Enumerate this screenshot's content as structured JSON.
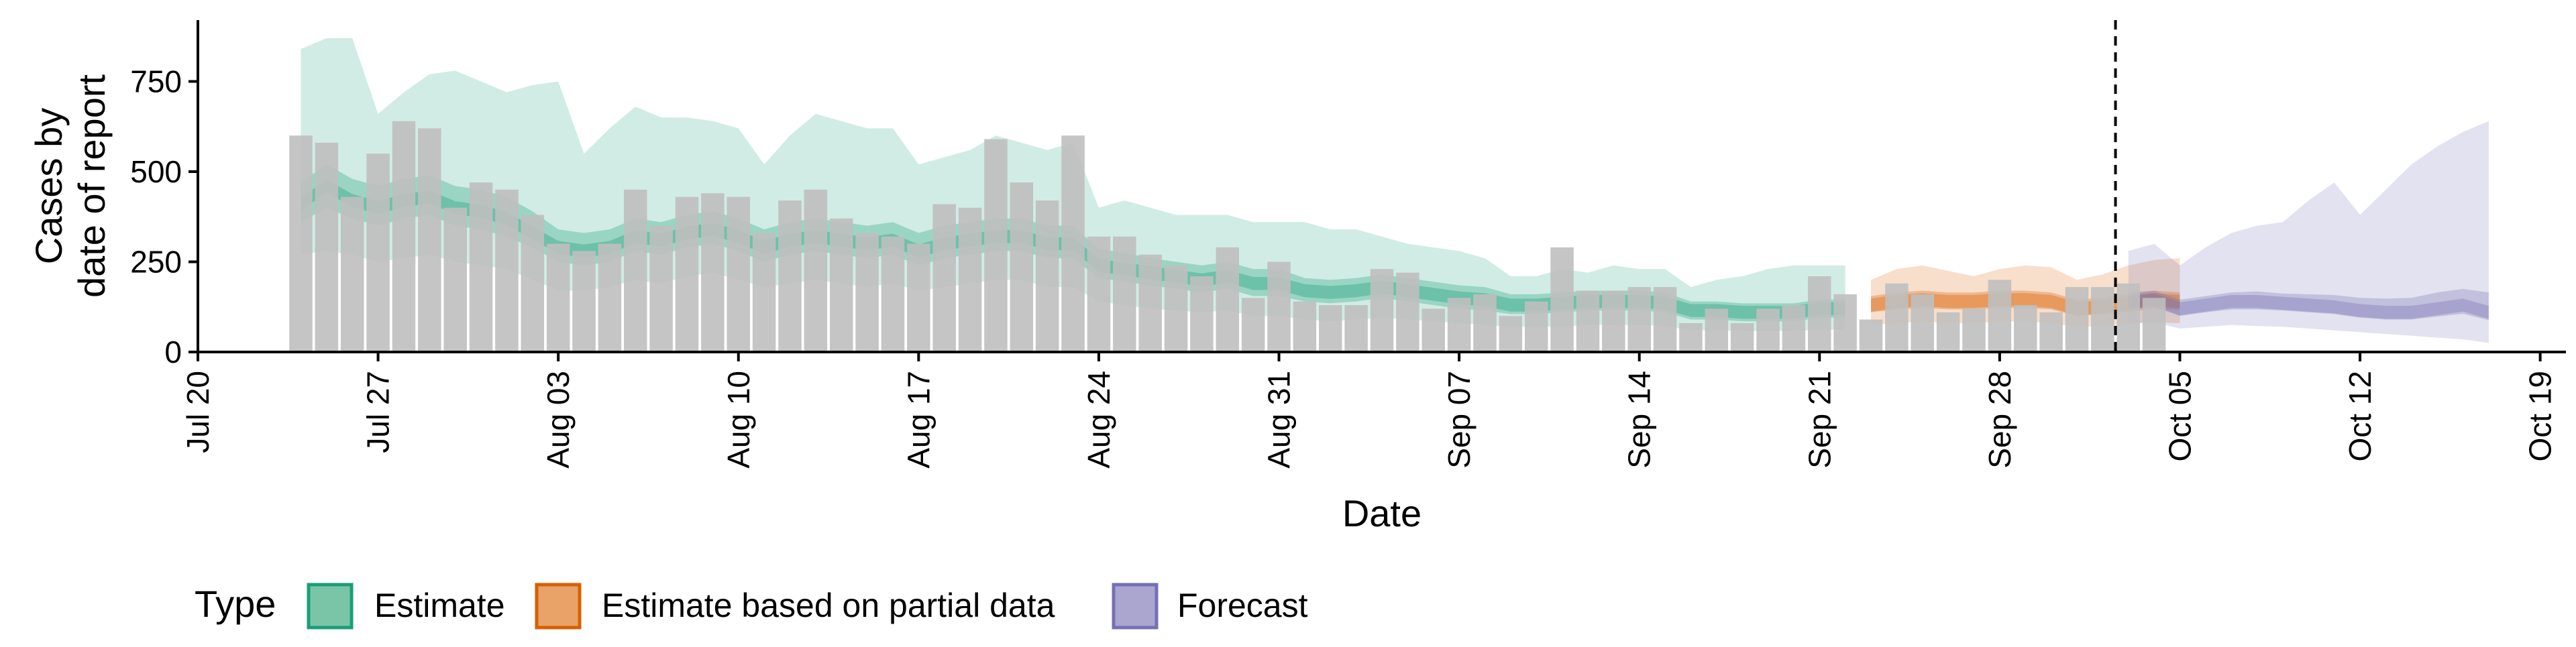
{
  "chart_data": {
    "type": "bar",
    "title": "",
    "xlabel": "Date",
    "ylabel": "Cases by\ndate of report",
    "ylim": [
      0,
      920
    ],
    "xlim": [
      "2020-07-20",
      "2020-10-20"
    ],
    "y_ticks": [
      0,
      250,
      500,
      750
    ],
    "x_ticks": [
      {
        "date": "2020-07-20",
        "label": "Jul 20"
      },
      {
        "date": "2020-07-27",
        "label": "Jul 27"
      },
      {
        "date": "2020-08-03",
        "label": "Aug 03"
      },
      {
        "date": "2020-08-10",
        "label": "Aug 10"
      },
      {
        "date": "2020-08-17",
        "label": "Aug 17"
      },
      {
        "date": "2020-08-24",
        "label": "Aug 24"
      },
      {
        "date": "2020-08-31",
        "label": "Aug 31"
      },
      {
        "date": "2020-09-07",
        "label": "Sep 07"
      },
      {
        "date": "2020-09-14",
        "label": "Sep 14"
      },
      {
        "date": "2020-09-21",
        "label": "Sep 21"
      },
      {
        "date": "2020-09-28",
        "label": "Sep 28"
      },
      {
        "date": "2020-10-05",
        "label": "Oct 05"
      },
      {
        "date": "2020-10-12",
        "label": "Oct 12"
      },
      {
        "date": "2020-10-19",
        "label": "Oct 19"
      }
    ],
    "grid": false,
    "legend": {
      "title": "Type",
      "position": "bottom",
      "entries": [
        {
          "label": "Estimate",
          "fill": "#7ac5a8",
          "stroke": "#1b9e77"
        },
        {
          "label": "Estimate based on partial data",
          "fill": "#e9a267",
          "stroke": "#d95f02"
        },
        {
          "label": "Forecast",
          "fill": "#aaa6d0",
          "stroke": "#7570b3"
        }
      ]
    },
    "forecast_date": "2020-10-02",
    "bar_color": "#bfbfbf",
    "bars": {
      "start_date": "2020-07-24",
      "values": [
        600,
        580,
        430,
        550,
        640,
        620,
        400,
        470,
        450,
        380,
        300,
        280,
        300,
        450,
        350,
        430,
        440,
        430,
        330,
        420,
        450,
        370,
        330,
        320,
        300,
        410,
        400,
        590,
        470,
        420,
        600,
        320,
        320,
        270,
        240,
        210,
        290,
        150,
        250,
        140,
        130,
        130,
        230,
        220,
        120,
        150,
        160,
        100,
        140,
        290,
        170,
        170,
        180,
        180,
        80,
        120,
        80,
        120,
        130,
        210,
        160,
        90,
        190,
        160,
        110,
        120,
        200,
        130,
        110,
        180,
        180,
        190,
        150
      ]
    },
    "series": [
      {
        "name": "Estimate",
        "start_date": "2020-07-24",
        "color": "#1b9e77",
        "median": [
          410,
          460,
          420,
          400,
          420,
          430,
          400,
          390,
          370,
          330,
          290,
          280,
          290,
          320,
          310,
          330,
          340,
          320,
          290,
          310,
          320,
          310,
          300,
          310,
          280,
          300,
          310,
          320,
          320,
          300,
          300,
          240,
          230,
          220,
          210,
          200,
          210,
          190,
          190,
          170,
          165,
          170,
          180,
          170,
          160,
          150,
          145,
          130,
          130,
          135,
          140,
          140,
          140,
          135,
          115,
          115,
          110,
          110,
          110,
          120,
          120
        ],
        "lower50": [
          360,
          400,
          370,
          350,
          370,
          380,
          350,
          340,
          320,
          290,
          250,
          240,
          250,
          280,
          270,
          290,
          300,
          280,
          250,
          270,
          280,
          270,
          260,
          270,
          240,
          260,
          270,
          280,
          280,
          260,
          260,
          205,
          195,
          185,
          175,
          165,
          175,
          155,
          155,
          140,
          135,
          140,
          150,
          140,
          130,
          120,
          115,
          105,
          105,
          110,
          115,
          115,
          115,
          110,
          90,
          90,
          85,
          85,
          85,
          95,
          95
        ],
        "upper50": [
          470,
          520,
          480,
          460,
          480,
          490,
          460,
          450,
          430,
          390,
          340,
          330,
          340,
          370,
          360,
          380,
          390,
          370,
          340,
          360,
          370,
          360,
          350,
          360,
          330,
          350,
          360,
          370,
          370,
          350,
          350,
          285,
          275,
          260,
          250,
          240,
          250,
          230,
          230,
          205,
          200,
          205,
          215,
          205,
          195,
          185,
          180,
          160,
          160,
          165,
          170,
          170,
          170,
          165,
          140,
          140,
          135,
          135,
          135,
          145,
          145
        ],
        "lower90": [
          270,
          280,
          270,
          250,
          260,
          270,
          250,
          240,
          230,
          200,
          170,
          170,
          180,
          200,
          190,
          210,
          220,
          200,
          180,
          190,
          200,
          190,
          180,
          190,
          170,
          180,
          190,
          200,
          200,
          180,
          180,
          140,
          130,
          120,
          115,
          110,
          115,
          100,
          100,
          90,
          85,
          90,
          95,
          90,
          85,
          80,
          75,
          70,
          70,
          70,
          75,
          75,
          75,
          72,
          60,
          60,
          58,
          58,
          58,
          62,
          62
        ],
        "upper90": [
          840,
          870,
          870,
          660,
          720,
          770,
          780,
          750,
          720,
          740,
          750,
          550,
          620,
          680,
          650,
          650,
          640,
          620,
          520,
          600,
          660,
          640,
          620,
          620,
          520,
          540,
          560,
          600,
          580,
          560,
          580,
          400,
          420,
          400,
          380,
          380,
          380,
          360,
          360,
          360,
          340,
          340,
          320,
          300,
          290,
          280,
          260,
          210,
          210,
          230,
          220,
          240,
          230,
          230,
          180,
          200,
          210,
          230,
          240,
          240,
          240
        ]
      },
      {
        "name": "Estimate based on partial data",
        "start_date": "2020-09-23",
        "color": "#d95f02",
        "median": [
          130,
          140,
          145,
          140,
          140,
          145,
          145,
          140,
          120,
          125,
          135,
          145,
          140
        ],
        "lower50": [
          110,
          118,
          122,
          118,
          118,
          122,
          122,
          118,
          100,
          105,
          112,
          120,
          118
        ],
        "upper50": [
          155,
          165,
          170,
          165,
          165,
          170,
          170,
          165,
          145,
          150,
          160,
          170,
          165
        ],
        "lower90": [
          75,
          80,
          85,
          80,
          80,
          85,
          85,
          80,
          70,
          72,
          78,
          82,
          80
        ],
        "upper90": [
          200,
          230,
          240,
          225,
          210,
          230,
          240,
          235,
          200,
          215,
          240,
          255,
          260
        ]
      },
      {
        "name": "Forecast",
        "start_date": "2020-10-03",
        "color": "#7570b3",
        "median": [
          140,
          145,
          120,
          130,
          140,
          140,
          135,
          130,
          125,
          115,
          110,
          110,
          120,
          130,
          110
        ],
        "lower50": [
          120,
          125,
          100,
          110,
          118,
          118,
          115,
          110,
          105,
          95,
          90,
          90,
          98,
          106,
          88
        ],
        "upper50": [
          165,
          170,
          145,
          155,
          165,
          168,
          162,
          160,
          158,
          150,
          148,
          150,
          165,
          175,
          165
        ],
        "lower90": [
          80,
          82,
          65,
          70,
          75,
          72,
          70,
          65,
          60,
          55,
          50,
          45,
          40,
          35,
          25
        ],
        "upper90": [
          280,
          300,
          240,
          290,
          330,
          350,
          360,
          420,
          470,
          380,
          450,
          520,
          570,
          610,
          640
        ]
      }
    ]
  }
}
